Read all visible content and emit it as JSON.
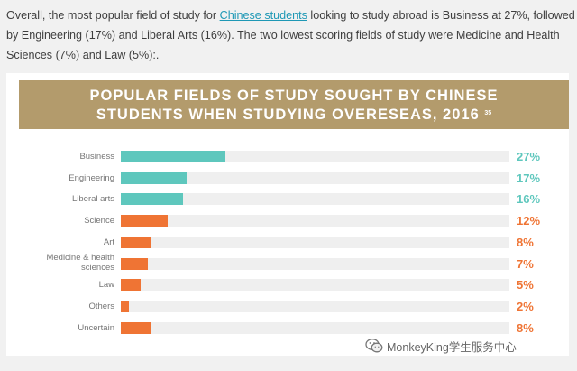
{
  "intro": {
    "text_before_link": "Overall, the most popular field of study for ",
    "link_text": "Chinese students",
    "text_after_link": " looking to study abroad is Business at 27%, followed by Engineering (17%) and Liberal Arts (16%). The two lowest scoring fields of study were Medicine and Health Sciences (7%) and Law (5%):."
  },
  "banner": {
    "line1": "POPULAR FIELDS OF STUDY SOUGHT BY CHINESE",
    "line2": "STUDENTS WHEN STUDYING OVERESEAS, 2016",
    "footnote": "35"
  },
  "colors": {
    "banner": "#b39b6c",
    "teal": "#5ec7bd",
    "orange": "#ef7434",
    "track": "#efefef",
    "link": "#1e98b5"
  },
  "chart_data": {
    "type": "bar",
    "orientation": "horizontal",
    "title": "POPULAR FIELDS OF STUDY SOUGHT BY CHINESE STUDENTS WHEN STUDYING OVERESEAS, 2016",
    "categories": [
      "Business",
      "Engineering",
      "Liberal arts",
      "Science",
      "Art",
      "Medicine & health sciences",
      "Law",
      "Others",
      "Uncertain"
    ],
    "values": [
      27,
      17,
      16,
      12,
      8,
      7,
      5,
      2,
      8
    ],
    "value_labels": [
      "27%",
      "17%",
      "16%",
      "12%",
      "8%",
      "7%",
      "5%",
      "2%",
      "8%"
    ],
    "bar_colors": [
      "teal",
      "teal",
      "teal",
      "orange",
      "orange",
      "orange",
      "orange",
      "orange",
      "orange"
    ],
    "xlim": [
      0,
      100
    ],
    "grid": false,
    "legend": "none"
  },
  "watermark": {
    "text": "MonkeyKing学生服务中心",
    "icon": "wechat-icon"
  }
}
